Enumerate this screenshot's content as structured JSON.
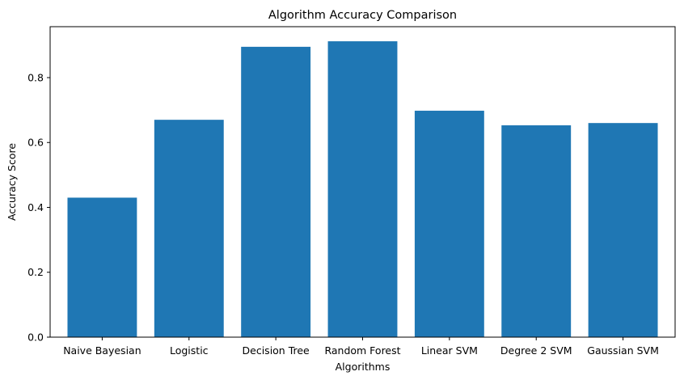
{
  "chart_data": {
    "type": "bar",
    "title": "Algorithm Accuracy Comparison",
    "xlabel": "Algorithms",
    "ylabel": "Accuracy Score",
    "categories": [
      "Naive Bayesian",
      "Logistic",
      "Decision Tree",
      "Random Forest",
      "Linear SVM",
      "Degree 2 SVM",
      "Gaussian SVM"
    ],
    "values": [
      0.43,
      0.67,
      0.895,
      0.912,
      0.698,
      0.653,
      0.66
    ],
    "yticks": [
      "0.0",
      "0.2",
      "0.4",
      "0.6",
      "0.8"
    ],
    "ylim": [
      0,
      0.957
    ],
    "grid": false,
    "bar_color": "#1f77b4"
  }
}
